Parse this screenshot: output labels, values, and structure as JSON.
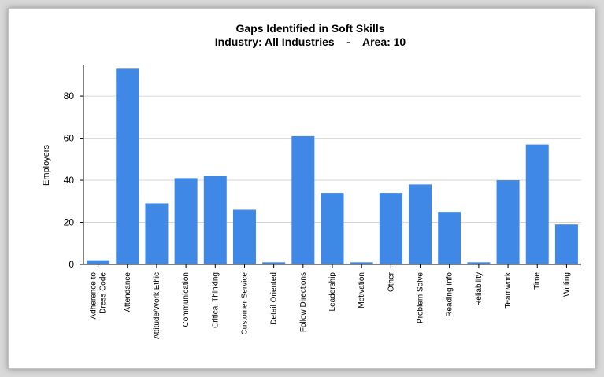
{
  "chart_data": {
    "type": "bar",
    "title": "Gaps Identified in Soft Skills",
    "subtitle": "Industry: All Industries    -    Area: 10",
    "xlabel": "",
    "ylabel": "Employers",
    "ylim": [
      0,
      95
    ],
    "yticks": [
      0,
      20,
      40,
      60,
      80
    ],
    "grid": true,
    "bar_color": "#3f88e6",
    "categories": [
      [
        "Adherence to",
        "Dress Code"
      ],
      [
        "Attendance"
      ],
      [
        "Attitude/Work Ethic"
      ],
      [
        "Communication"
      ],
      [
        "Critical Thinking"
      ],
      [
        "Customer Service"
      ],
      [
        "Detail Oriented"
      ],
      [
        "Follow Directions"
      ],
      [
        "Leadership"
      ],
      [
        "Motivation"
      ],
      [
        "Other"
      ],
      [
        "Problem Solve"
      ],
      [
        "Reading Info"
      ],
      [
        "Reliability"
      ],
      [
        "Teamwork"
      ],
      [
        "Time"
      ],
      [
        "Writing"
      ]
    ],
    "values": [
      2,
      93,
      29,
      41,
      42,
      26,
      1,
      61,
      34,
      1,
      34,
      38,
      25,
      1,
      40,
      57,
      19
    ]
  }
}
